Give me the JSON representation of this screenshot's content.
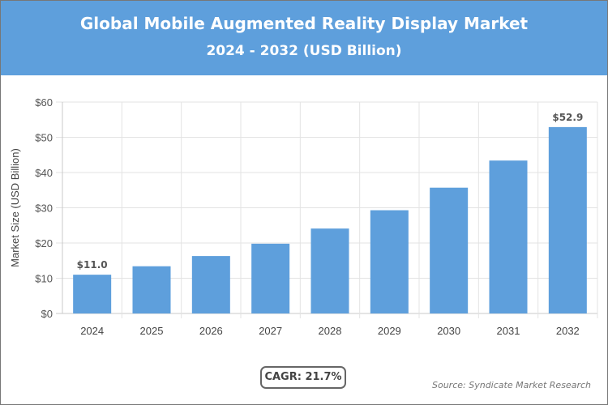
{
  "header": {
    "title": "Global Mobile Augmented Reality Display Market",
    "subtitle": "2024 - 2032 (USD Billion)"
  },
  "footer": {
    "cagr": "CAGR: 21.7%",
    "source": "Source: Syndicate Market Research"
  },
  "colors": {
    "header": "#5e9fdc",
    "bar": "#5e9fdc",
    "grid": "#e3e3e3",
    "axis": "#c8c8c8"
  },
  "chart_data": {
    "type": "bar",
    "title": "Global Mobile Augmented Reality Display Market",
    "subtitle": "2024 - 2032 (USD Billion)",
    "xlabel": "",
    "ylabel": "Market Size (USD Billion)",
    "categories": [
      "2024",
      "2025",
      "2026",
      "2027",
      "2028",
      "2029",
      "2030",
      "2031",
      "2032"
    ],
    "values": [
      11.0,
      13.4,
      16.3,
      19.8,
      24.1,
      29.3,
      35.7,
      43.4,
      52.9
    ],
    "data_labels": {
      "0": "$11.0",
      "8": "$52.9"
    },
    "yticks": [
      "$0",
      "$10",
      "$20",
      "$30",
      "$40",
      "$50",
      "$60"
    ],
    "ylim": [
      0,
      60
    ],
    "grid": true
  }
}
